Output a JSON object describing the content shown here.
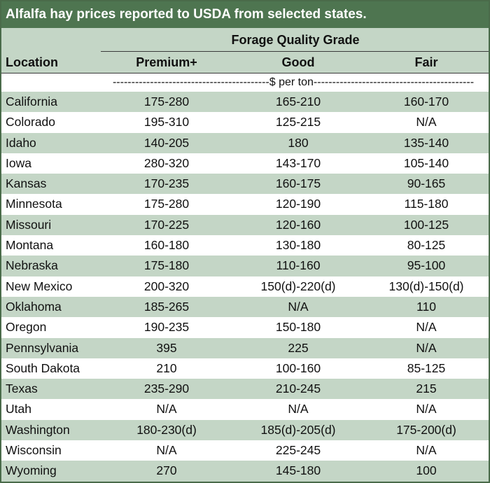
{
  "title": "Alfalfa hay prices reported to USDA from selected states.",
  "group_header": "Forage Quality Grade",
  "columns": {
    "location": "Location",
    "premium": "Premium+",
    "good": "Good",
    "fair": "Fair"
  },
  "units": "------------------------------------------$ per ton-------------------------------------------",
  "rows": [
    {
      "location": "California",
      "premium": "175-280",
      "good": "165-210",
      "fair": "160-170"
    },
    {
      "location": "Colorado",
      "premium": "195-310",
      "good": "125-215",
      "fair": "N/A"
    },
    {
      "location": "Idaho",
      "premium": "140-205",
      "good": "180",
      "fair": "135-140"
    },
    {
      "location": "Iowa",
      "premium": "280-320",
      "good": "143-170",
      "fair": "105-140"
    },
    {
      "location": "Kansas",
      "premium": "170-235",
      "good": "160-175",
      "fair": "90-165"
    },
    {
      "location": "Minnesota",
      "premium": "175-280",
      "good": "120-190",
      "fair": "115-180"
    },
    {
      "location": "Missouri",
      "premium": "170-225",
      "good": "120-160",
      "fair": "100-125"
    },
    {
      "location": "Montana",
      "premium": "160-180",
      "good": "130-180",
      "fair": "80-125"
    },
    {
      "location": "Nebraska",
      "premium": "175-180",
      "good": "110-160",
      "fair": "95-100"
    },
    {
      "location": "New Mexico",
      "premium": "200-320",
      "good": "150(d)-220(d)",
      "fair": "130(d)-150(d)"
    },
    {
      "location": "Oklahoma",
      "premium": "185-265",
      "good": "N/A",
      "fair": "110"
    },
    {
      "location": "Oregon",
      "premium": "190-235",
      "good": "150-180",
      "fair": "N/A"
    },
    {
      "location": "Pennsylvania",
      "premium": "395",
      "good": "225",
      "fair": "N/A"
    },
    {
      "location": "South Dakota",
      "premium": "210",
      "good": "100-160",
      "fair": "85-125"
    },
    {
      "location": "Texas",
      "premium": "235-290",
      "good": "210-245",
      "fair": "215"
    },
    {
      "location": "Utah",
      "premium": "N/A",
      "good": "N/A",
      "fair": "N/A"
    },
    {
      "location": "Washington",
      "premium": "180-230(d)",
      "good": "185(d)-205(d)",
      "fair": "175-200(d)"
    },
    {
      "location": "Wisconsin",
      "premium": "N/A",
      "good": "225-245",
      "fair": "N/A"
    },
    {
      "location": "Wyoming",
      "premium": "270",
      "good": "145-180",
      "fair": "100"
    }
  ],
  "colors": {
    "title_bg": "#4e7550",
    "band": "#c4d6c6",
    "border": "#4a6b4a"
  }
}
